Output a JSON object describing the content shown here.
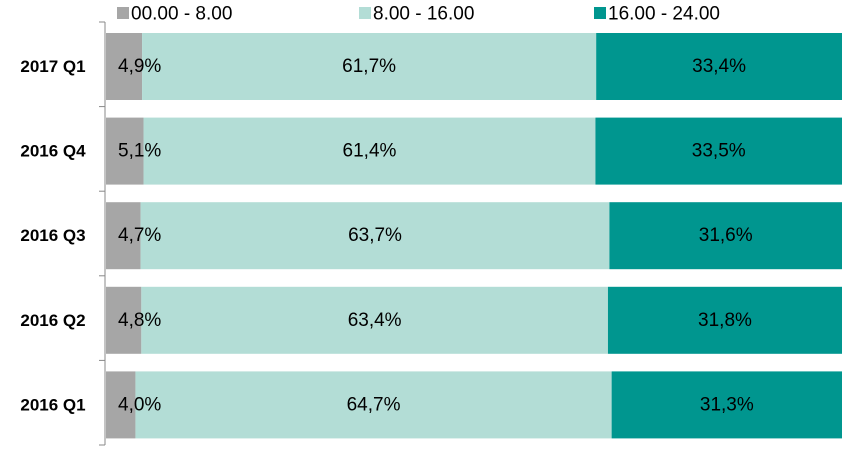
{
  "chart_data": {
    "type": "bar",
    "orientation": "horizontal",
    "stacked": true,
    "percent_stacked": true,
    "categories": [
      "2017 Q1",
      "2016 Q4",
      "2016 Q3",
      "2016 Q2",
      "2016 Q1"
    ],
    "series": [
      {
        "name": "00.00 - 8.00",
        "values": [
          4.9,
          5.1,
          4.7,
          4.8,
          4.0
        ],
        "labels": [
          "4,9%",
          "5,1%",
          "4,7%",
          "4,8%",
          "4,0%"
        ],
        "color": "#a6a6a6"
      },
      {
        "name": "8.00 - 16.00",
        "values": [
          61.7,
          61.4,
          63.7,
          63.4,
          64.7
        ],
        "labels": [
          "61,7%",
          "61,4%",
          "63,7%",
          "63,4%",
          "64,7%"
        ],
        "color": "#b3ddd6"
      },
      {
        "name": "16.00 - 24.00",
        "values": [
          33.4,
          33.5,
          31.6,
          31.8,
          31.3
        ],
        "labels": [
          "33,4%",
          "33,5%",
          "31,6%",
          "31,8%",
          "31,3%"
        ],
        "color": "#00968f"
      }
    ],
    "xlim": [
      0,
      100
    ],
    "legend_position": "top",
    "grid": false,
    "title": "",
    "xlabel": "",
    "ylabel": ""
  }
}
